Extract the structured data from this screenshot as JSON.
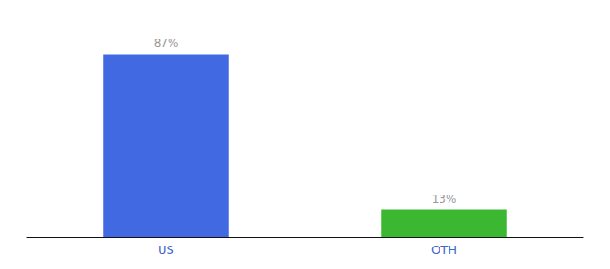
{
  "chart_data": {
    "type": "bar",
    "categories": [
      "US",
      "OTH"
    ],
    "values": [
      87,
      13
    ],
    "value_labels": [
      "87%",
      "13%"
    ],
    "colors": [
      "#4169e1",
      "#3cb731"
    ],
    "ylim": [
      0,
      100
    ],
    "grid": false,
    "data_labels": true,
    "tick_labels": "x"
  }
}
